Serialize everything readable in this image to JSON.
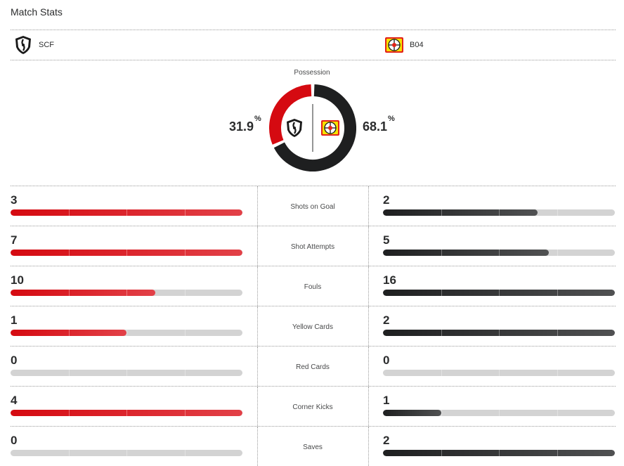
{
  "header": {
    "title": "Match Stats"
  },
  "teams": {
    "home": {
      "abbr": "SCF",
      "logo_icon": "sc-freiburg-crest-icon",
      "color": "#d50a11"
    },
    "away": {
      "abbr": "B04",
      "logo_icon": "bayer-leverkusen-crest-icon",
      "color": "#2b2c2d"
    }
  },
  "possession": {
    "label": "Possession",
    "home": {
      "value": "31.9",
      "percent_sign": "%",
      "fraction": 0.319
    },
    "away": {
      "value": "68.1",
      "percent_sign": "%",
      "fraction": 0.681
    }
  },
  "stats": [
    {
      "label": "Shots on Goal",
      "home": "3",
      "away": "2",
      "home_fill": 1.0,
      "away_fill": 0.6667
    },
    {
      "label": "Shot Attempts",
      "home": "7",
      "away": "5",
      "home_fill": 1.0,
      "away_fill": 0.7143
    },
    {
      "label": "Fouls",
      "home": "10",
      "away": "16",
      "home_fill": 0.625,
      "away_fill": 1.0
    },
    {
      "label": "Yellow Cards",
      "home": "1",
      "away": "2",
      "home_fill": 0.5,
      "away_fill": 1.0
    },
    {
      "label": "Red Cards",
      "home": "0",
      "away": "0",
      "home_fill": 0,
      "away_fill": 0
    },
    {
      "label": "Corner Kicks",
      "home": "4",
      "away": "1",
      "home_fill": 1.0,
      "away_fill": 0.25
    },
    {
      "label": "Saves",
      "home": "0",
      "away": "2",
      "home_fill": 0,
      "away_fill": 1.0
    }
  ]
}
